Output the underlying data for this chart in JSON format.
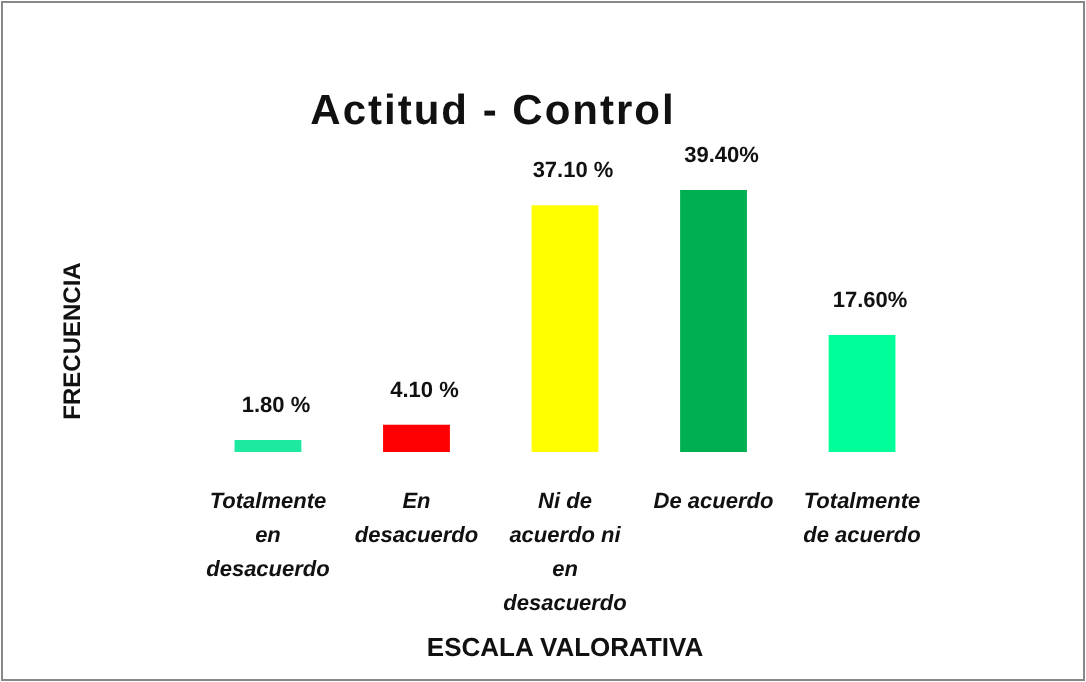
{
  "chart_data": {
    "type": "bar",
    "title": "Actitud - Control",
    "xlabel": "ESCALA VALORATIVA",
    "ylabel": "FRECUENCIA",
    "categories": [
      "Totalmente en desacuerdo",
      "En desacuerdo",
      "Ni de acuerdo ni en desacuerdo",
      "De acuerdo",
      "Totalmente de acuerdo"
    ],
    "values": [
      1.8,
      4.1,
      37.1,
      39.4,
      17.6
    ],
    "colors": [
      "#1de9a0",
      "#ff0000",
      "#ffff00",
      "#00b050",
      "#00ff99"
    ],
    "value_labels": [
      "1.80 %",
      "4.10 %",
      "37.10 %",
      "39.40%",
      "17.60%"
    ]
  }
}
